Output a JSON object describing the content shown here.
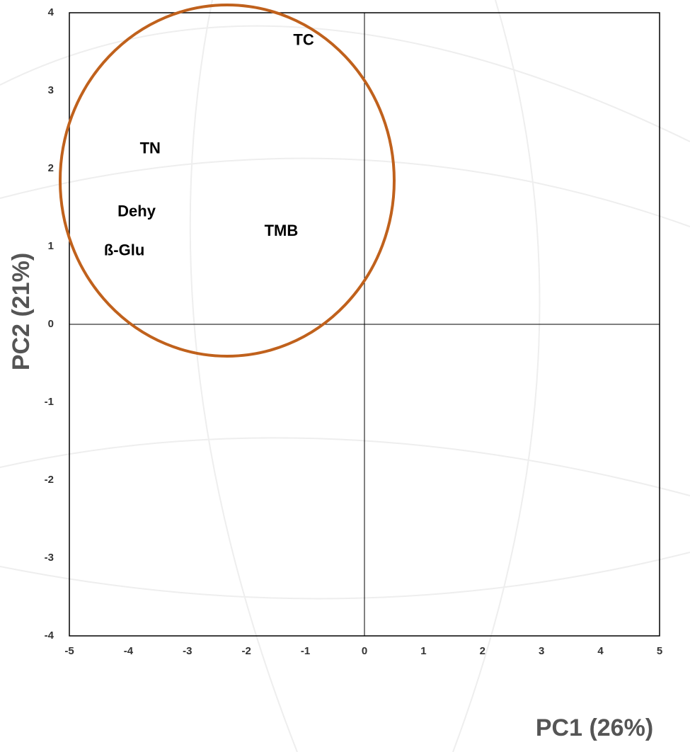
{
  "chart_data": {
    "type": "scatter",
    "xlabel": "PC1 (26%)",
    "ylabel": "PC2 (21%)",
    "labels": [
      "TC",
      "TN",
      "Dehy",
      "TMB",
      "ß-Glu"
    ],
    "x": [
      -1.03,
      -3.63,
      -3.86,
      -1.41,
      -4.07
    ],
    "values": [
      3.64,
      2.25,
      1.44,
      1.19,
      0.94
    ],
    "xlim": [
      -5,
      5
    ],
    "xticks": [
      -5,
      -4,
      -3,
      -2,
      -1,
      0,
      1,
      2,
      3,
      4,
      5
    ],
    "ylim": [
      -4,
      4
    ],
    "yticks": [
      -4,
      -3,
      -2,
      -1,
      0,
      1,
      2,
      3,
      4
    ],
    "zero_lines": true,
    "ellipse_color": "#c0611c"
  }
}
